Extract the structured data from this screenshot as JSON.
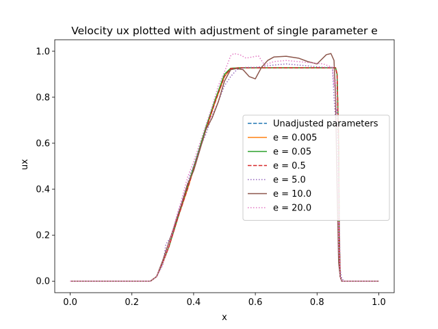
{
  "chart_data": {
    "type": "line",
    "title": "Velocity ux plotted with adjustment of single parameter e",
    "xlabel": "x",
    "ylabel": "ux",
    "xlim": [
      -0.05,
      1.05
    ],
    "ylim": [
      -0.05,
      1.05
    ],
    "xticks": [
      "0.0",
      "0.2",
      "0.4",
      "0.6",
      "0.8",
      "1.0"
    ],
    "yticks": [
      "0.0",
      "0.2",
      "0.4",
      "0.6",
      "0.8",
      "1.0"
    ],
    "grid": false,
    "legend": "center-right",
    "series": [
      {
        "name": "Unadjusted parameters",
        "color": "#1f77b4",
        "style": "dashed",
        "points": [
          [
            0,
            0
          ],
          [
            0.26,
            0
          ],
          [
            0.28,
            0.02
          ],
          [
            0.3,
            0.08
          ],
          [
            0.32,
            0.15
          ],
          [
            0.35,
            0.28
          ],
          [
            0.38,
            0.4
          ],
          [
            0.41,
            0.53
          ],
          [
            0.44,
            0.66
          ],
          [
            0.47,
            0.78
          ],
          [
            0.5,
            0.89
          ],
          [
            0.52,
            0.925
          ],
          [
            0.55,
            0.928
          ],
          [
            0.65,
            0.928
          ],
          [
            0.75,
            0.928
          ],
          [
            0.86,
            0.928
          ],
          [
            0.865,
            0.9
          ],
          [
            0.87,
            0.6
          ],
          [
            0.872,
            0.2
          ],
          [
            0.875,
            0.02
          ],
          [
            0.88,
            0
          ],
          [
            1.0,
            0
          ]
        ]
      },
      {
        "name": "e = 0.005",
        "color": "#ff7f0e",
        "style": "solid",
        "points": [
          [
            0,
            0
          ],
          [
            0.26,
            0
          ],
          [
            0.28,
            0.02
          ],
          [
            0.3,
            0.08
          ],
          [
            0.32,
            0.15
          ],
          [
            0.35,
            0.28
          ],
          [
            0.38,
            0.4
          ],
          [
            0.41,
            0.53
          ],
          [
            0.44,
            0.66
          ],
          [
            0.47,
            0.78
          ],
          [
            0.5,
            0.89
          ],
          [
            0.52,
            0.925
          ],
          [
            0.55,
            0.928
          ],
          [
            0.65,
            0.928
          ],
          [
            0.75,
            0.928
          ],
          [
            0.86,
            0.928
          ],
          [
            0.865,
            0.9
          ],
          [
            0.87,
            0.6
          ],
          [
            0.872,
            0.2
          ],
          [
            0.875,
            0.02
          ],
          [
            0.88,
            0
          ],
          [
            1.0,
            0
          ]
        ]
      },
      {
        "name": "e = 0.05",
        "color": "#2ca02c",
        "style": "solid",
        "points": [
          [
            0,
            0
          ],
          [
            0.26,
            0
          ],
          [
            0.28,
            0.02
          ],
          [
            0.3,
            0.08
          ],
          [
            0.32,
            0.15
          ],
          [
            0.35,
            0.28
          ],
          [
            0.38,
            0.41
          ],
          [
            0.41,
            0.54
          ],
          [
            0.44,
            0.67
          ],
          [
            0.47,
            0.79
          ],
          [
            0.5,
            0.9
          ],
          [
            0.52,
            0.926
          ],
          [
            0.55,
            0.928
          ],
          [
            0.65,
            0.928
          ],
          [
            0.75,
            0.928
          ],
          [
            0.86,
            0.928
          ],
          [
            0.865,
            0.9
          ],
          [
            0.87,
            0.6
          ],
          [
            0.872,
            0.2
          ],
          [
            0.875,
            0.02
          ],
          [
            0.88,
            0
          ],
          [
            1.0,
            0
          ]
        ]
      },
      {
        "name": "e = 0.5",
        "color": "#d62728",
        "style": "dashed",
        "points": [
          [
            0,
            0
          ],
          [
            0.26,
            0
          ],
          [
            0.28,
            0.02
          ],
          [
            0.3,
            0.08
          ],
          [
            0.32,
            0.15
          ],
          [
            0.35,
            0.28
          ],
          [
            0.38,
            0.4
          ],
          [
            0.41,
            0.53
          ],
          [
            0.44,
            0.66
          ],
          [
            0.47,
            0.78
          ],
          [
            0.5,
            0.89
          ],
          [
            0.52,
            0.925
          ],
          [
            0.55,
            0.928
          ],
          [
            0.65,
            0.928
          ],
          [
            0.75,
            0.928
          ],
          [
            0.86,
            0.928
          ],
          [
            0.865,
            0.9
          ],
          [
            0.87,
            0.6
          ],
          [
            0.872,
            0.2
          ],
          [
            0.875,
            0.02
          ],
          [
            0.88,
            0
          ],
          [
            1.0,
            0
          ]
        ]
      },
      {
        "name": "e = 5.0",
        "color": "#9467bd",
        "style": "dotted",
        "points": [
          [
            0,
            0
          ],
          [
            0.26,
            0
          ],
          [
            0.28,
            0.02
          ],
          [
            0.3,
            0.07
          ],
          [
            0.31,
            0.16
          ],
          [
            0.33,
            0.2
          ],
          [
            0.35,
            0.3
          ],
          [
            0.37,
            0.38
          ],
          [
            0.39,
            0.47
          ],
          [
            0.4,
            0.5
          ],
          [
            0.42,
            0.58
          ],
          [
            0.44,
            0.64
          ],
          [
            0.46,
            0.72
          ],
          [
            0.48,
            0.78
          ],
          [
            0.5,
            0.85
          ],
          [
            0.52,
            0.89
          ],
          [
            0.54,
            0.92
          ],
          [
            0.57,
            0.93
          ],
          [
            0.6,
            0.93
          ],
          [
            0.63,
            0.935
          ],
          [
            0.66,
            0.94
          ],
          [
            0.7,
            0.945
          ],
          [
            0.74,
            0.94
          ],
          [
            0.78,
            0.935
          ],
          [
            0.82,
            0.93
          ],
          [
            0.85,
            0.93
          ],
          [
            0.855,
            0.8
          ],
          [
            0.86,
            0.7
          ],
          [
            0.865,
            0.75
          ],
          [
            0.87,
            0.4
          ],
          [
            0.875,
            0.05
          ],
          [
            0.88,
            0.01
          ],
          [
            0.89,
            0
          ],
          [
            1.0,
            0
          ]
        ]
      },
      {
        "name": "e = 10.0",
        "color": "#8c564b",
        "style": "solid",
        "points": [
          [
            0,
            0
          ],
          [
            0.26,
            0
          ],
          [
            0.28,
            0.02
          ],
          [
            0.3,
            0.09
          ],
          [
            0.32,
            0.17
          ],
          [
            0.34,
            0.25
          ],
          [
            0.36,
            0.33
          ],
          [
            0.38,
            0.42
          ],
          [
            0.4,
            0.48
          ],
          [
            0.42,
            0.57
          ],
          [
            0.44,
            0.66
          ],
          [
            0.46,
            0.71
          ],
          [
            0.48,
            0.78
          ],
          [
            0.5,
            0.87
          ],
          [
            0.52,
            0.92
          ],
          [
            0.54,
            0.925
          ],
          [
            0.56,
            0.92
          ],
          [
            0.58,
            0.89
          ],
          [
            0.6,
            0.88
          ],
          [
            0.62,
            0.93
          ],
          [
            0.64,
            0.96
          ],
          [
            0.66,
            0.975
          ],
          [
            0.7,
            0.978
          ],
          [
            0.74,
            0.97
          ],
          [
            0.77,
            0.955
          ],
          [
            0.8,
            0.945
          ],
          [
            0.83,
            0.985
          ],
          [
            0.845,
            0.99
          ],
          [
            0.855,
            0.96
          ],
          [
            0.86,
            0.8
          ],
          [
            0.865,
            0.4
          ],
          [
            0.87,
            0.08
          ],
          [
            0.875,
            0.02
          ],
          [
            0.88,
            0
          ],
          [
            1.0,
            0
          ]
        ]
      },
      {
        "name": "e = 20.0",
        "color": "#e377c2",
        "style": "dotted",
        "points": [
          [
            0,
            0
          ],
          [
            0.26,
            0
          ],
          [
            0.28,
            0.02
          ],
          [
            0.3,
            0.08
          ],
          [
            0.32,
            0.16
          ],
          [
            0.34,
            0.26
          ],
          [
            0.36,
            0.35
          ],
          [
            0.38,
            0.45
          ],
          [
            0.4,
            0.52
          ],
          [
            0.42,
            0.6
          ],
          [
            0.44,
            0.68
          ],
          [
            0.46,
            0.76
          ],
          [
            0.48,
            0.85
          ],
          [
            0.5,
            0.91
          ],
          [
            0.52,
            0.98
          ],
          [
            0.53,
            0.99
          ],
          [
            0.55,
            0.985
          ],
          [
            0.57,
            0.97
          ],
          [
            0.59,
            0.975
          ],
          [
            0.61,
            0.98
          ],
          [
            0.63,
            0.94
          ],
          [
            0.66,
            0.955
          ],
          [
            0.7,
            0.96
          ],
          [
            0.74,
            0.955
          ],
          [
            0.78,
            0.95
          ],
          [
            0.82,
            0.945
          ],
          [
            0.85,
            0.93
          ],
          [
            0.855,
            0.85
          ],
          [
            0.86,
            0.88
          ],
          [
            0.865,
            0.6
          ],
          [
            0.87,
            0.15
          ],
          [
            0.875,
            0.02
          ],
          [
            0.88,
            0
          ],
          [
            1.0,
            0
          ]
        ]
      }
    ]
  }
}
